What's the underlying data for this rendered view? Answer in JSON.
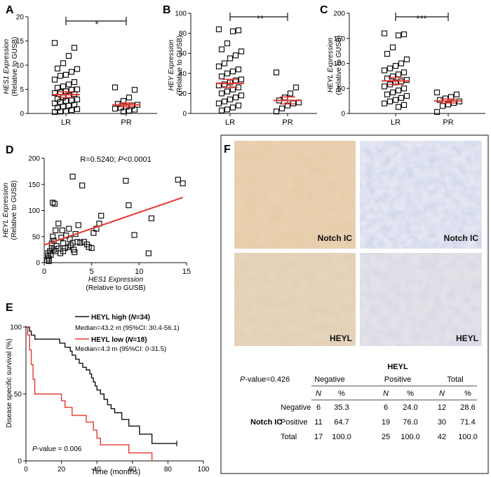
{
  "panels": {
    "A": {
      "letter": "A",
      "sig": "*",
      "ylabel1": "HES1 Expression",
      "ylabel2": "(Relative to GUSB)"
    },
    "B": {
      "letter": "B",
      "sig": "**",
      "ylabel1": "HEY Expression",
      "ylabel2": "(Relative to GUSB)"
    },
    "C": {
      "letter": "C",
      "sig": "***",
      "ylabel1": "HEYL Expression",
      "ylabel2": "(Relative to GUSB)"
    },
    "D": {
      "letter": "D",
      "stat": "R=0.5240; P<0.0001",
      "xlabel1": "HES1 Expression",
      "xlabel2": "(Relative to GUSB)",
      "ylabel1": "HEYL Expression",
      "ylabel2": "(Relative to GUSB)"
    },
    "E": {
      "letter": "E",
      "ylabel": "Disease specific survival (%)",
      "xlabel": "Time (months)",
      "legend_high": "HEYL high (N=34)",
      "median_high": "Median=43.2 m (95%CI: 30.4-56.1)",
      "legend_low": "HEYL low (N=18)",
      "median_low": "Median=4.3 m (95%CI: 0-31.5)",
      "pvalue": "P-value = 0.006"
    },
    "F": {
      "letter": "F",
      "img_labels": [
        "Notch IC",
        "Notch IC",
        "HEYL",
        "HEYL"
      ]
    }
  },
  "colors": {
    "red": "#e8352e",
    "black": "#111111"
  },
  "chart_data": [
    {
      "id": "A",
      "type": "scatter",
      "title": "",
      "xlabel": "",
      "ylabel": "HES1 Expression (Relative to GUSB)",
      "categories": [
        "LR",
        "PR"
      ],
      "ylim": [
        0,
        20
      ],
      "yticks": [
        0,
        5,
        10,
        15,
        20
      ],
      "groups": [
        {
          "name": "LR",
          "values": [
            14.6,
            13.6,
            11.9,
            10.4,
            9.3,
            9.2,
            8.6,
            8.0,
            7.8,
            7.0,
            6.5,
            6.0,
            5.6,
            5.3,
            5.0,
            4.9,
            4.6,
            4.4,
            4.2,
            4.0,
            3.7,
            3.3,
            3.0,
            2.9,
            2.7,
            2.6,
            2.4,
            2.1,
            1.8,
            1.6,
            1.4,
            1.2,
            0.9,
            0.7,
            0.5,
            0.4,
            0.3
          ],
          "mean": 3.9,
          "sem": 0.6
        },
        {
          "name": "PR",
          "values": [
            5.4,
            4.9,
            3.3,
            2.6,
            2.0,
            1.8,
            1.6,
            1.4,
            1.2,
            1.0,
            0.8,
            0.6,
            0.4
          ],
          "mean": 1.8,
          "sem": 0.4
        }
      ]
    },
    {
      "id": "B",
      "type": "scatter",
      "title": "",
      "xlabel": "",
      "ylabel": "HEY Expression (Relative to GUSB)",
      "categories": [
        "LR",
        "PR"
      ],
      "ylim": [
        0,
        100
      ],
      "yticks": [
        0,
        20,
        40,
        60,
        80,
        100
      ],
      "groups": [
        {
          "name": "LR",
          "values": [
            84,
            83,
            82,
            70,
            64,
            62,
            58,
            55,
            50,
            47,
            44,
            42,
            40,
            37,
            34,
            33,
            31,
            29,
            28,
            26,
            24,
            22,
            20,
            18,
            16,
            14,
            12,
            10,
            8,
            6,
            4,
            3
          ],
          "mean": 30,
          "sem": 4
        },
        {
          "name": "PR",
          "values": [
            41,
            26,
            20,
            16,
            13,
            11,
            10,
            8,
            5,
            2
          ],
          "mean": 13,
          "sem": 3.5
        }
      ]
    },
    {
      "id": "C",
      "type": "scatter",
      "title": "",
      "xlabel": "",
      "ylabel": "HEYL Expression (Relative to GUSB)",
      "categories": [
        "LR",
        "PR"
      ],
      "ylim": [
        0,
        200
      ],
      "yticks": [
        0,
        50,
        100,
        150,
        200
      ],
      "groups": [
        {
          "name": "LR",
          "values": [
            160,
            158,
            156,
            132,
            119,
            108,
            100,
            95,
            90,
            86,
            82,
            78,
            74,
            70,
            67,
            64,
            62,
            58,
            54,
            50,
            46,
            42,
            38,
            35,
            31,
            27,
            24,
            20,
            17,
            13
          ],
          "mean": 65,
          "sem": 7
        },
        {
          "name": "PR",
          "values": [
            42,
            38,
            33,
            30,
            27,
            24,
            21,
            18,
            15,
            3
          ],
          "mean": 25,
          "sem": 4
        }
      ]
    },
    {
      "id": "D",
      "type": "scatter",
      "title": "R=0.5240; P<0.0001",
      "xlabel": "HES1 Expression (Relative to GUSB)",
      "ylabel": "HEYL Expression (Relative to GUSB)",
      "xlim": [
        0,
        15
      ],
      "ylim": [
        0,
        200
      ],
      "xticks": [
        0,
        5,
        10,
        15
      ],
      "yticks": [
        0,
        50,
        100,
        150,
        200
      ],
      "points": [
        [
          0.3,
          5
        ],
        [
          0.4,
          12
        ],
        [
          0.4,
          18
        ],
        [
          0.5,
          8
        ],
        [
          0.5,
          3
        ],
        [
          0.6,
          22
        ],
        [
          0.7,
          15
        ],
        [
          0.8,
          28
        ],
        [
          0.8,
          37
        ],
        [
          0.9,
          50
        ],
        [
          0.9,
          115
        ],
        [
          1.0,
          25
        ],
        [
          1.0,
          42
        ],
        [
          1.1,
          113
        ],
        [
          1.2,
          22
        ],
        [
          1.2,
          62
        ],
        [
          1.3,
          32
        ],
        [
          1.5,
          27
        ],
        [
          1.5,
          75
        ],
        [
          1.7,
          18
        ],
        [
          1.8,
          48
        ],
        [
          1.9,
          62
        ],
        [
          2.0,
          37
        ],
        [
          2.0,
          22
        ],
        [
          2.2,
          28
        ],
        [
          2.3,
          52
        ],
        [
          2.5,
          30
        ],
        [
          2.6,
          65
        ],
        [
          2.7,
          45
        ],
        [
          2.8,
          33
        ],
        [
          3.0,
          38
        ],
        [
          3.0,
          165
        ],
        [
          3.1,
          25
        ],
        [
          3.2,
          20
        ],
        [
          3.3,
          55
        ],
        [
          3.5,
          40
        ],
        [
          3.6,
          72
        ],
        [
          3.8,
          38
        ],
        [
          4.0,
          148
        ],
        [
          4.2,
          40
        ],
        [
          4.5,
          35
        ],
        [
          4.7,
          30
        ],
        [
          5.0,
          28
        ],
        [
          5.2,
          57
        ],
        [
          5.5,
          65
        ],
        [
          5.8,
          75
        ],
        [
          6.0,
          90
        ],
        [
          8.6,
          157
        ],
        [
          8.9,
          110
        ],
        [
          9.5,
          53
        ],
        [
          11.0,
          18
        ],
        [
          11.3,
          85
        ],
        [
          14.1,
          159
        ],
        [
          14.6,
          152
        ]
      ],
      "regression": {
        "x": [
          0,
          14.6
        ],
        "y": [
          34,
          125
        ]
      }
    },
    {
      "id": "E",
      "type": "line",
      "title": "",
      "xlabel": "Time (months)",
      "ylabel": "Disease specific survival (%)",
      "xlim": [
        0,
        100
      ],
      "ylim": [
        0,
        100
      ],
      "xticks": [
        0,
        20,
        40,
        60,
        80,
        100
      ],
      "yticks": [
        0,
        50,
        100
      ],
      "series": [
        {
          "name": "HEYL high (N=34)",
          "color": "#111111",
          "steps": [
            [
              0,
              100
            ],
            [
              2,
              97
            ],
            [
              3,
              94
            ],
            [
              5,
              91
            ],
            [
              19,
              88
            ],
            [
              22,
              85
            ],
            [
              25,
              82
            ],
            [
              26,
              79
            ],
            [
              28,
              76
            ],
            [
              30,
              73
            ],
            [
              32,
              70
            ],
            [
              34,
              68
            ],
            [
              36,
              65
            ],
            [
              37,
              62
            ],
            [
              38,
              59
            ],
            [
              39,
              56
            ],
            [
              40,
              53
            ],
            [
              42,
              50
            ],
            [
              44,
              46
            ],
            [
              46,
              42
            ],
            [
              48,
              39
            ],
            [
              50,
              36
            ],
            [
              54,
              31
            ],
            [
              58,
              26
            ],
            [
              64,
              20
            ],
            [
              71,
              13
            ],
            [
              85,
              13
            ]
          ]
        },
        {
          "name": "HEYL low (N=18)",
          "color": "#e8352e",
          "steps": [
            [
              0,
              100
            ],
            [
              1,
              94
            ],
            [
              2,
              83
            ],
            [
              3,
              72
            ],
            [
              4,
              61
            ],
            [
              5,
              50
            ],
            [
              20,
              45
            ],
            [
              22,
              40
            ],
            [
              26,
              34
            ],
            [
              34,
              29
            ],
            [
              38,
              23
            ],
            [
              40,
              17
            ],
            [
              42,
              12
            ],
            [
              58,
              6
            ],
            [
              71,
              6
            ],
            [
              71,
              0
            ]
          ]
        }
      ]
    },
    {
      "id": "F",
      "type": "table",
      "title": "HEYL",
      "caption": "P-value=0.426",
      "group_headers": [
        "Negative",
        "Positive",
        "Total"
      ],
      "sub_headers": [
        "N",
        "%",
        "N",
        "%",
        "N",
        "%"
      ],
      "row_group": "Notch IC",
      "rows": [
        {
          "label": "Negative",
          "cells": [
            "6",
            "35.3",
            "6",
            "24.0",
            "12",
            "28.6"
          ]
        },
        {
          "label": "Positive",
          "cells": [
            "11",
            "64.7",
            "19",
            "76.0",
            "30",
            "71.4"
          ]
        },
        {
          "label": "Total",
          "cells": [
            "17",
            "100.0",
            "25",
            "100.0",
            "42",
            "100.0"
          ]
        }
      ]
    }
  ]
}
